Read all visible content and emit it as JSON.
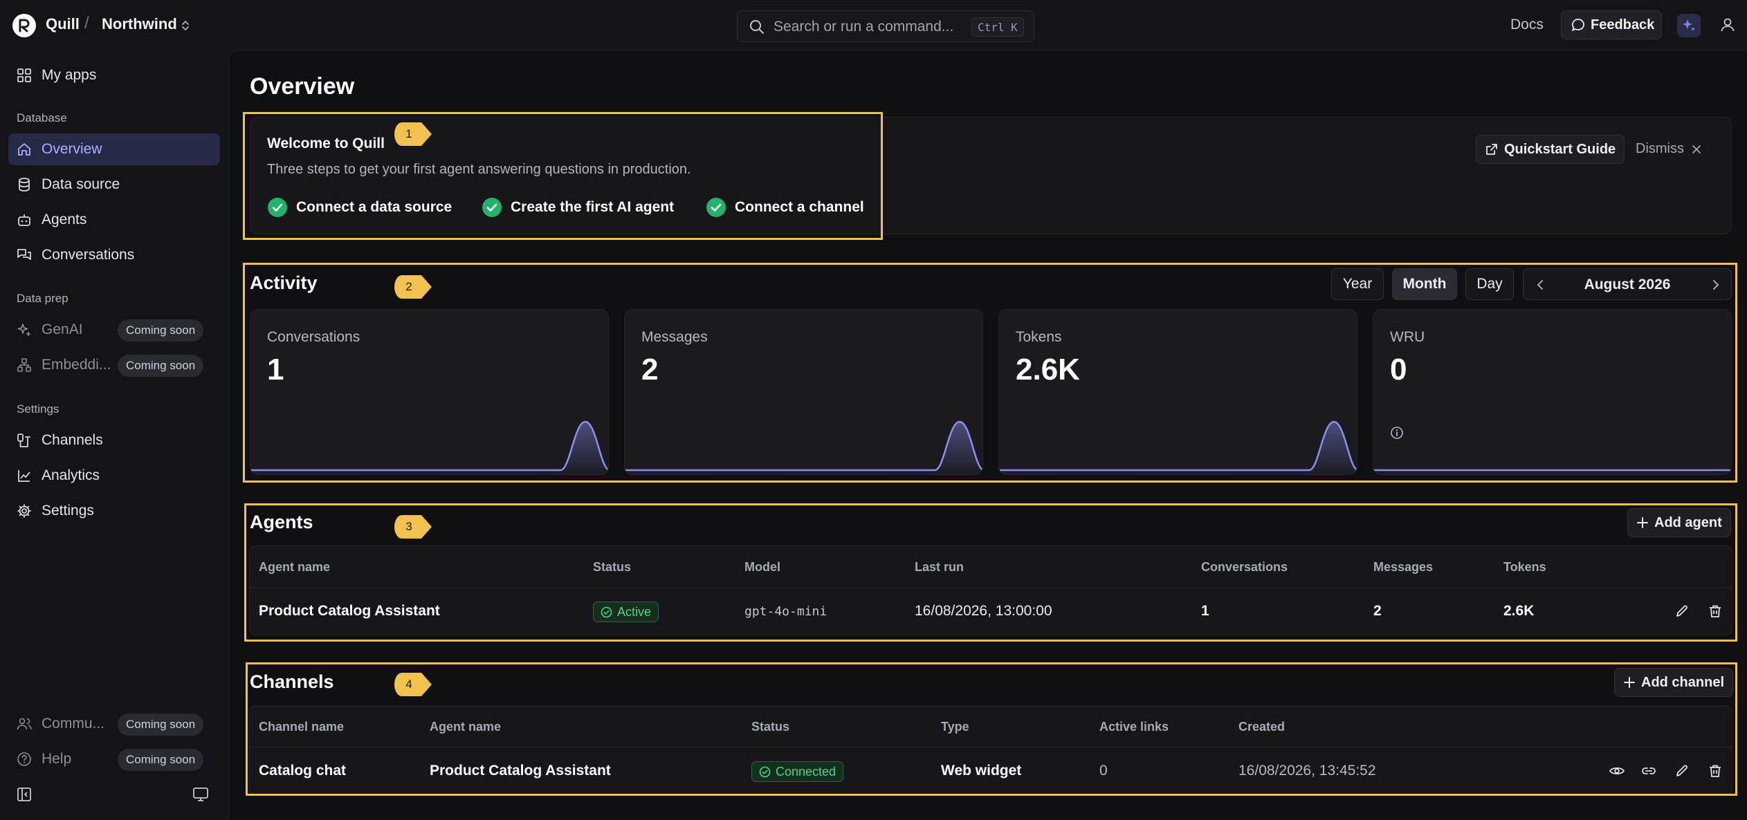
{
  "app": {
    "name": "Quill",
    "workspace": "Northwind"
  },
  "header": {
    "search_placeholder": "Search or run a command...",
    "shortcut": "Ctrl K",
    "docs_label": "Docs",
    "feedback_label": "Feedback"
  },
  "sidebar": {
    "my_apps": "My apps",
    "database_heading": "Database",
    "database_items": [
      "Overview",
      "Data source",
      "Agents",
      "Conversations"
    ],
    "dataprep_heading": "Data prep",
    "dataprep_items": [
      {
        "label": "GenAI",
        "badge": "Coming soon"
      },
      {
        "label": "Embeddi...",
        "badge": "Coming soon"
      }
    ],
    "settings_heading": "Settings",
    "settings_items": [
      "Channels",
      "Analytics",
      "Settings"
    ],
    "bottom_items": [
      {
        "label": "Commu...",
        "badge": "Coming soon"
      },
      {
        "label": "Help",
        "badge": "Coming soon"
      }
    ]
  },
  "page": {
    "title": "Overview"
  },
  "welcome": {
    "title": "Welcome to Quill",
    "subtitle": "Three steps to get your first agent answering questions in production.",
    "steps": [
      "Connect a data source",
      "Create the first AI agent",
      "Connect a channel"
    ],
    "quickstart_label": "Quickstart Guide",
    "dismiss_label": "Dismiss"
  },
  "markers": [
    "1",
    "2",
    "3",
    "4"
  ],
  "activity": {
    "title": "Activity",
    "periods": [
      "Year",
      "Month",
      "Day"
    ],
    "selected_period": "Month",
    "month_label": "August 2026",
    "metrics": [
      {
        "label": "Conversations",
        "value": "1"
      },
      {
        "label": "Messages",
        "value": "2"
      },
      {
        "label": "Tokens",
        "value": "2.6K"
      },
      {
        "label": "WRU",
        "value": "0"
      }
    ]
  },
  "agents": {
    "title": "Agents",
    "add_label": "Add agent",
    "columns": [
      "Agent name",
      "Status",
      "Model",
      "Last run",
      "Conversations",
      "Messages",
      "Tokens"
    ],
    "rows": [
      {
        "name": "Product Catalog Assistant",
        "status": "Active",
        "model": "gpt-4o-mini",
        "last_run": "16/08/2026, 13:00:00",
        "conversations": "1",
        "messages": "2",
        "tokens": "2.6K"
      }
    ]
  },
  "channels": {
    "title": "Channels",
    "add_label": "Add channel",
    "columns": [
      "Channel name",
      "Agent name",
      "Status",
      "Type",
      "Active links",
      "Created"
    ],
    "rows": [
      {
        "name": "Catalog chat",
        "agent": "Product Catalog Assistant",
        "status": "Connected",
        "type": "Web widget",
        "active_links": "0",
        "created": "16/08/2026, 13:45:52"
      }
    ]
  },
  "colors": {
    "accent": "#a9b1ff",
    "highlight": "#f2c14e",
    "success": "#4fd38a",
    "chart_line": "#8b8ff0"
  }
}
